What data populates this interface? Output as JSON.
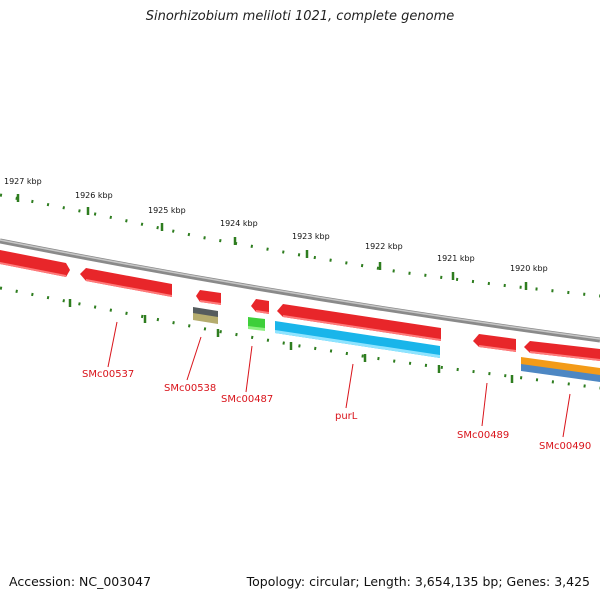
{
  "title": "Sinorhizobium meliloti 1021, complete genome",
  "footer": {
    "accession": "Accession: NC_003047",
    "summary": "Topology: circular; Length: 3,654,135 bp; Genes: 3,425"
  },
  "ruler": {
    "ticks": [
      "1927 kbp",
      "1926 kbp",
      "1925 kbp",
      "1924 kbp",
      "1923 kbp",
      "1922 kbp",
      "1921 kbp",
      "1920 kbp"
    ]
  },
  "genes": [
    {
      "label": "SMc00537",
      "strand": "forward",
      "color": "#e8262a"
    },
    {
      "label": "SMc00538",
      "strand": "reverse",
      "color": "#b5ac6e"
    },
    {
      "label": "SMc00487",
      "strand": "reverse",
      "color": "#3ecf3a"
    },
    {
      "label": "purL",
      "strand": "reverse",
      "color": "#19b5ea"
    },
    {
      "label": "SMc00489",
      "strand": "forward",
      "color": "#e8262a"
    },
    {
      "label": "SMc00490",
      "strand": "reverse",
      "color": "#f39b18"
    }
  ],
  "colors": {
    "backbone": "#8a8a8a",
    "forward_gene": "#e8262a",
    "label": "#d9141b",
    "tick": "#2e7d1f"
  }
}
